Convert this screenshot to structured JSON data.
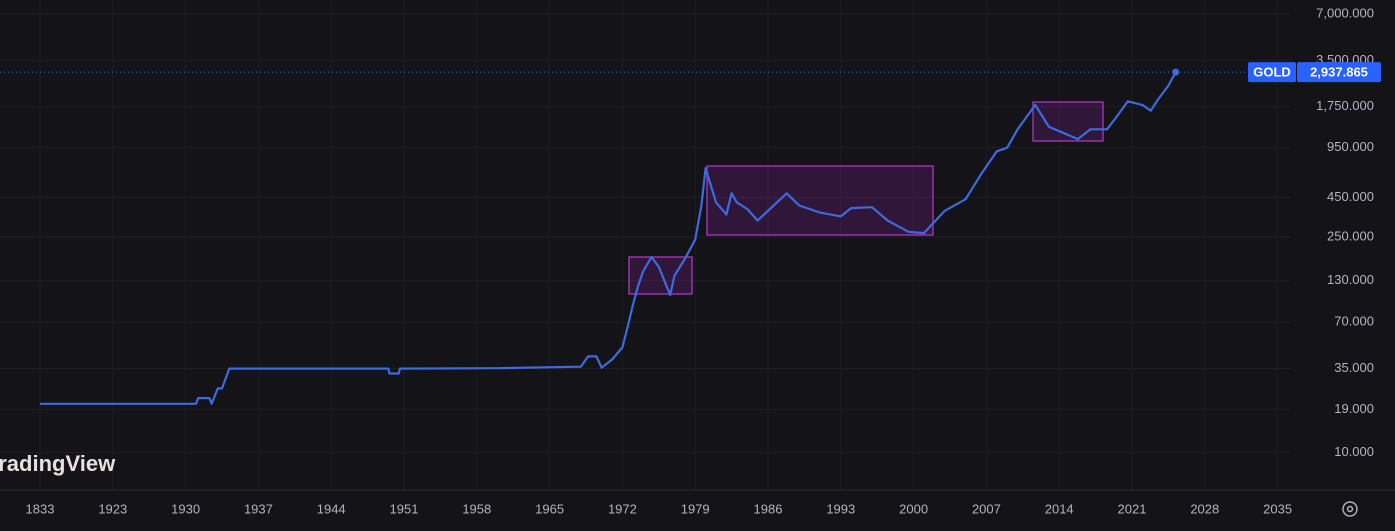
{
  "chart_data": {
    "type": "line",
    "watermark": "TradingView",
    "yscale": "log",
    "grid": true,
    "xlim": [
      1784,
      2036.2
    ],
    "xticks": [
      1833,
      1923,
      1930,
      1937,
      1944,
      1951,
      1958,
      1965,
      1972,
      1979,
      1986,
      1993,
      2000,
      2007,
      2014,
      2021,
      2028,
      2035
    ],
    "ylim": [
      5.7,
      8630
    ],
    "yticks": [
      {
        "value": 7000,
        "label": "7,000.000"
      },
      {
        "value": 3500,
        "label": "3,500.000"
      },
      {
        "value": 1750,
        "label": "1,750.000"
      },
      {
        "value": 950,
        "label": "950.000"
      },
      {
        "value": 450,
        "label": "450.000"
      },
      {
        "value": 250,
        "label": "250.000"
      },
      {
        "value": 130,
        "label": "130.000"
      },
      {
        "value": 70,
        "label": "70.000"
      },
      {
        "value": 35,
        "label": "35.000"
      },
      {
        "value": 19,
        "label": "19.000"
      },
      {
        "value": 10,
        "label": "10.000"
      }
    ],
    "x": [
      1833,
      1923,
      1931,
      1931.2,
      1932.3,
      1932.5,
      1933.1,
      1933.5,
      1934.2,
      1949.5,
      1949.6,
      1950.5,
      1950.6,
      1960,
      1968,
      1968.7,
      1969.5,
      1970,
      1971,
      1972,
      1972.5,
      1973,
      1973.5,
      1974,
      1974.8,
      1975.5,
      1976.6,
      1977,
      1978,
      1979,
      1979.6,
      1980,
      1980.3,
      1981,
      1982,
      1982.5,
      1983,
      1984,
      1985,
      1986,
      1987.8,
      1989,
      1990,
      1991,
      1993,
      1994,
      1996,
      1997.5,
      1999.5,
      2001,
      2003,
      2005,
      2006.5,
      2008,
      2009,
      2010,
      2011.7,
      2013,
      2015.8,
      2017,
      2018.6,
      2019.5,
      2020.6,
      2022,
      2022.8,
      2023.5,
      2024.5,
      2025.2
    ],
    "series": [
      {
        "name": "GOLD",
        "color": "#3d6bdf",
        "values": [
          20.67,
          20.67,
          20.67,
          22.5,
          22.5,
          20.7,
          26,
          26,
          35,
          35,
          32.5,
          32.5,
          35,
          35.2,
          36,
          42,
          42,
          35.5,
          40,
          48,
          65,
          90,
          120,
          150,
          185,
          160,
          105,
          140,
          180,
          240,
          400,
          700,
          600,
          420,
          350,
          480,
          420,
          380,
          320,
          370,
          480,
          400,
          380,
          360,
          340,
          385,
          390,
          320,
          270,
          265,
          370,
          440,
          640,
          900,
          950,
          1250,
          1800,
          1300,
          1080,
          1250,
          1250,
          1500,
          1900,
          1800,
          1650,
          1950,
          2400,
          2937.865
        ],
        "value_labels": [
          null,
          null,
          null,
          null,
          null,
          null,
          null,
          null,
          null,
          null,
          null,
          null,
          null,
          null,
          null,
          null,
          null,
          null,
          null,
          null,
          null,
          null,
          null,
          null,
          null,
          null,
          null,
          null,
          null,
          null,
          null,
          null,
          null,
          null,
          null,
          null,
          null,
          null,
          null,
          null,
          null,
          null,
          null,
          null,
          null,
          null,
          null,
          null,
          null,
          null,
          null,
          null,
          null,
          null,
          null,
          null,
          null,
          null,
          null,
          null,
          null,
          null,
          null,
          null,
          null,
          null,
          null,
          "2,937.865"
        ]
      }
    ]
  }
}
